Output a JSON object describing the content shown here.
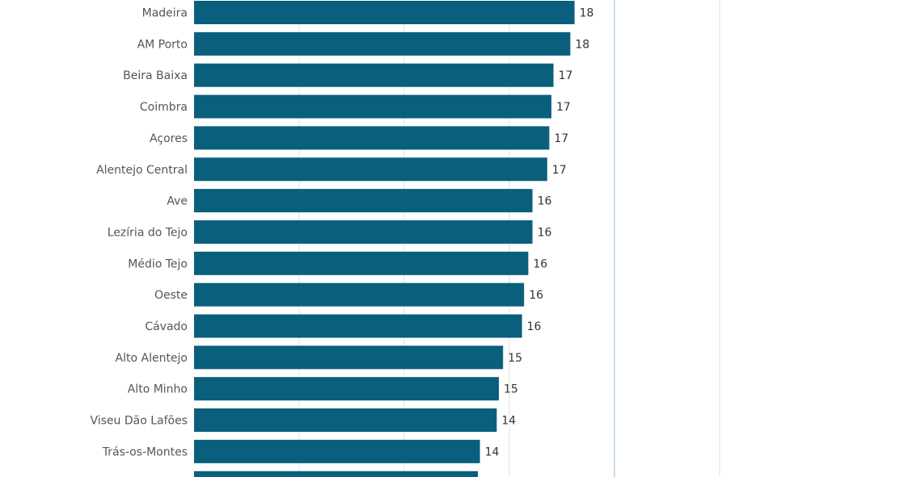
{
  "chart_data": {
    "type": "bar",
    "orientation": "horizontal",
    "categories": [
      "Madeira",
      "AM Porto",
      "Beira Baixa",
      "Coimbra",
      "Açores",
      "Alentejo Central",
      "Ave",
      "Lezíria do Tejo",
      "Médio Tejo",
      "Oeste",
      "Cávado",
      "Alto Alentejo",
      "Alto Minho",
      "Viseu Dão Lafões",
      "Trás-os-Montes",
      ""
    ],
    "values": [
      18.1,
      17.9,
      17.1,
      17.0,
      16.9,
      16.8,
      16.1,
      16.1,
      15.9,
      15.7,
      15.6,
      14.7,
      14.5,
      14.4,
      13.6,
      13.5
    ],
    "data_labels": [
      "18",
      "18",
      "17",
      "17",
      "17",
      "17",
      "16",
      "16",
      "16",
      "16",
      "16",
      "15",
      "15",
      "14",
      "14",
      ""
    ],
    "xlim": [
      0,
      25
    ],
    "grid_interval": 5,
    "grid": true,
    "title": "",
    "xlabel": "",
    "ylabel": "",
    "colors": {
      "bar": "#0a5f7c",
      "grid": "#dde2e6",
      "grid_strong": "#b9d6ec",
      "category_text": "#555555",
      "value_text": "#333333"
    }
  }
}
